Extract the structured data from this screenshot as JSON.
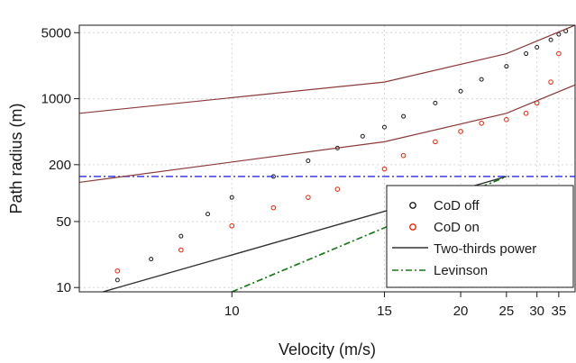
{
  "chart_data": {
    "type": "scatter",
    "title": "",
    "xlabel": "Velocity (m/s)",
    "ylabel": "Path radius (m)",
    "x_scale": "reciprocal",
    "y_scale": "log",
    "xlim": [
      7.5,
      40
    ],
    "ylim": [
      9,
      6000
    ],
    "x_ticks": [
      10,
      15,
      20,
      25,
      30,
      35
    ],
    "x_tick_labels": [
      "10",
      "15",
      "20",
      "25",
      "30",
      "35"
    ],
    "y_ticks": [
      10,
      50,
      200,
      1000,
      5000
    ],
    "y_tick_labels": [
      "10",
      "50",
      "200",
      "1000",
      "5000"
    ],
    "grid": true,
    "legend_position": "bottom-right",
    "series": [
      {
        "name": "CoD off",
        "kind": "points",
        "marker": "open-circle",
        "color": "#1a1a1a",
        "description_points": [
          [
            8,
            12
          ],
          [
            8.5,
            20
          ],
          [
            9,
            35
          ],
          [
            9.5,
            60
          ],
          [
            10,
            90
          ],
          [
            11,
            150
          ],
          [
            12,
            220
          ],
          [
            13,
            300
          ],
          [
            14,
            400
          ],
          [
            15,
            500
          ],
          [
            16,
            650
          ],
          [
            18,
            900
          ],
          [
            20,
            1200
          ],
          [
            22,
            1600
          ],
          [
            25,
            2200
          ],
          [
            28,
            3000
          ],
          [
            30,
            3500
          ],
          [
            33,
            4200
          ],
          [
            35,
            4800
          ],
          [
            37,
            5200
          ]
        ]
      },
      {
        "name": "CoD on",
        "kind": "points",
        "marker": "open-circle",
        "color": "#ff1a00",
        "description_points": [
          [
            8,
            15
          ],
          [
            9,
            25
          ],
          [
            10,
            45
          ],
          [
            11,
            70
          ],
          [
            12,
            90
          ],
          [
            13,
            110
          ],
          [
            15,
            180
          ],
          [
            16,
            250
          ],
          [
            18,
            350
          ],
          [
            20,
            450
          ],
          [
            22,
            550
          ],
          [
            25,
            600
          ],
          [
            28,
            700
          ],
          [
            30,
            900
          ],
          [
            33,
            1500
          ],
          [
            35,
            3000
          ]
        ]
      },
      {
        "name": "Two-thirds power",
        "kind": "line",
        "color": "#333333",
        "dash": "solid",
        "x": [
          7.8,
          25
        ],
        "y": [
          9,
          150
        ]
      },
      {
        "name": "Levinson",
        "kind": "line",
        "color": "#1a7a1a",
        "dash": "dashdot",
        "x": [
          10,
          25
        ],
        "y": [
          9,
          150
        ]
      }
    ],
    "reference_lines": [
      {
        "orientation": "horizontal",
        "y": 150,
        "color": "#3a3aff",
        "dash": "dashdot"
      },
      {
        "orientation": "curve",
        "color": "#8b3a3a",
        "x": [
          7.5,
          15,
          25,
          40
        ],
        "y": [
          700,
          1500,
          3000,
          6000
        ]
      },
      {
        "orientation": "curve",
        "color": "#8b3a3a",
        "x": [
          7.5,
          15,
          25,
          40
        ],
        "y": [
          130,
          350,
          700,
          1400
        ]
      }
    ],
    "colors": {
      "cod_off": "#1a1a1a",
      "cod_on": "#ff1a00",
      "two_thirds": "#333333",
      "levinson": "#1a7a1a",
      "reference": "#3a3aff",
      "curve": "#8b3a3a"
    }
  }
}
